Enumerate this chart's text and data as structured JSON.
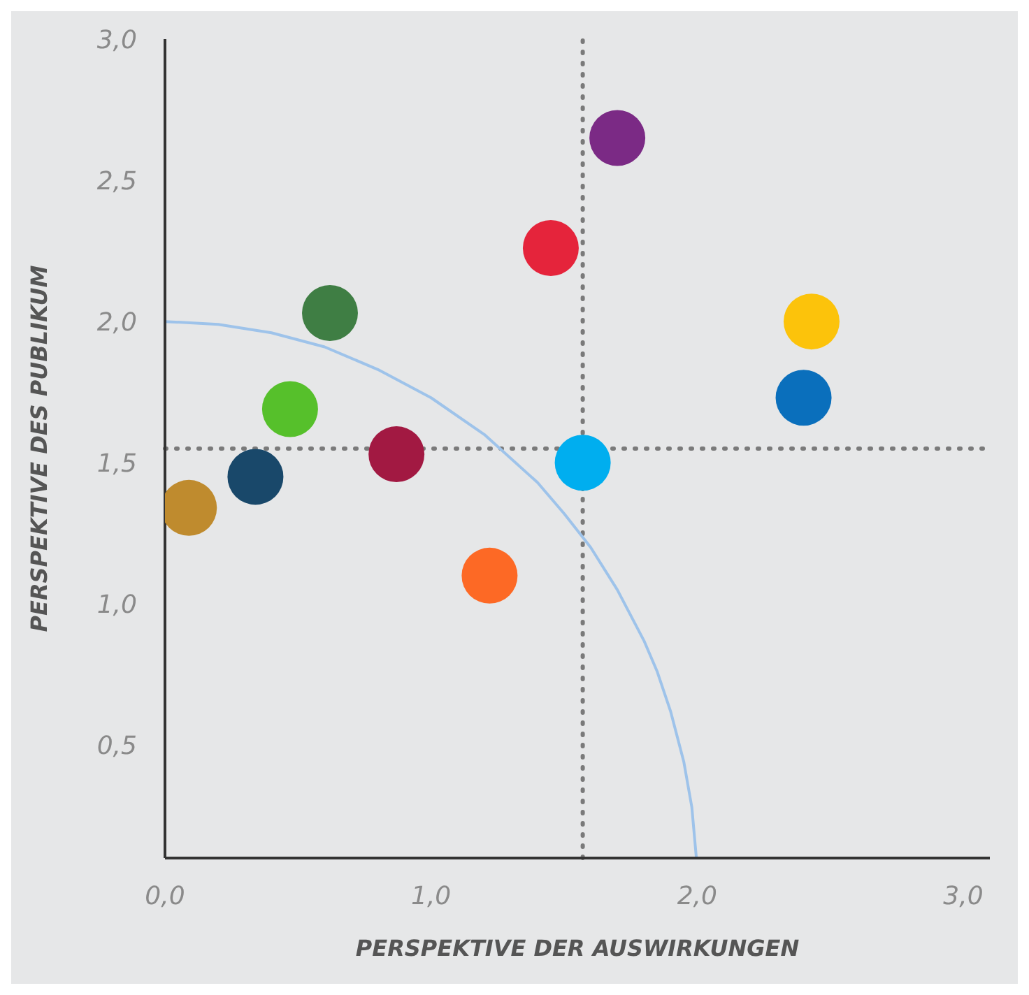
{
  "chart_data": {
    "type": "scatter",
    "xlabel": "PERSPEKTIVE DER AUSWIRKUNGEN",
    "ylabel": "PERSPEKTIVE DES PUBLIKUM",
    "xlim": [
      0,
      3.1
    ],
    "xticks": [
      {
        "value": 0,
        "label": "0,0"
      },
      {
        "value": 1,
        "label": "1,0"
      },
      {
        "value": 2,
        "label": "2,0"
      },
      {
        "value": 3,
        "label": "3,0"
      }
    ],
    "ylim": [
      0.1,
      3.0
    ],
    "yticks": [
      {
        "value": 0.5,
        "label": "0,5"
      },
      {
        "value": 1,
        "label": "1,0"
      },
      {
        "value": 1.5,
        "label": "1,5"
      },
      {
        "value": 2,
        "label": "2,0"
      },
      {
        "value": 2.5,
        "label": "2,5"
      },
      {
        "value": 3,
        "label": "3,0"
      }
    ],
    "grid": false,
    "legend": false,
    "series": [
      {
        "marker": "circle",
        "x": [
          0.09,
          0.34,
          0.47,
          0.62,
          0.87,
          1.22,
          1.45,
          1.7,
          1.57,
          2.43,
          2.4
        ],
        "values": [
          1.34,
          1.45,
          1.69,
          2.03,
          1.53,
          1.1,
          2.26,
          2.65,
          1.5,
          2.0,
          1.73
        ],
        "colors": [
          "#bf8b2e",
          "#19486a",
          "#56c02b",
          "#3f7e44",
          "#a21942",
          "#fd6925",
          "#e5243b",
          "#7b2a85",
          "#00aeef",
          "#fcc30b",
          "#0a6fbc"
        ]
      },
      {
        "type": "line",
        "marker": "none",
        "line_style": "solid",
        "color": "#9ec3ea",
        "x": [
          0,
          0.2,
          0.4,
          0.6,
          0.8,
          1.0,
          1.2,
          1.4,
          1.5,
          1.6,
          1.7,
          1.8,
          1.85,
          1.9,
          1.95,
          1.98,
          1.997
        ],
        "values": [
          2.0,
          1.99,
          1.96,
          1.91,
          1.83,
          1.73,
          1.6,
          1.43,
          1.32,
          1.2,
          1.05,
          0.87,
          0.76,
          0.62,
          0.44,
          0.28,
          0.1
        ]
      }
    ],
    "ref_lines": [
      {
        "axis": "x",
        "value": 1.57,
        "color": "#7a7a7a",
        "line_style": "dotted"
      },
      {
        "axis": "y",
        "value": 1.55,
        "color": "#7a7a7a",
        "line_style": "dotted"
      }
    ]
  }
}
